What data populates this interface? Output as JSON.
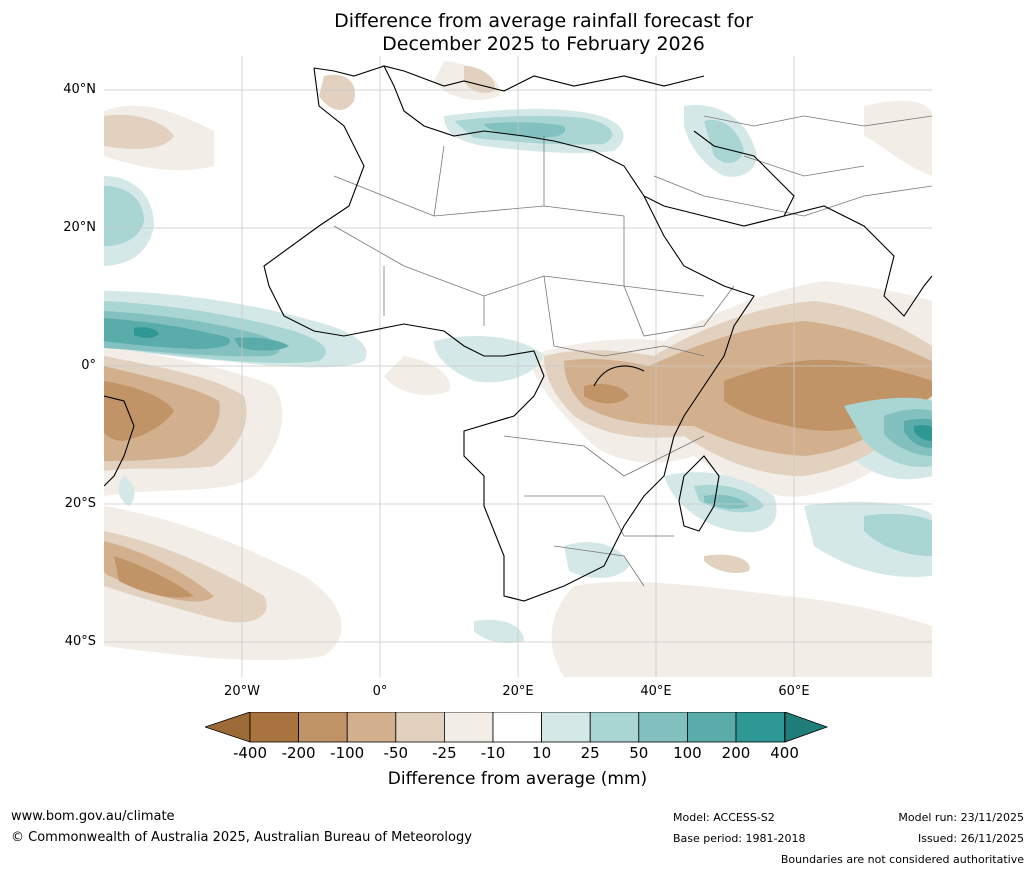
{
  "title": {
    "line1": "Difference from average rainfall forecast for",
    "line2": "December 2025 to February 2026"
  },
  "map": {
    "region": "Africa",
    "lat_labels": [
      "40°N",
      "20°N",
      "0°",
      "20°S",
      "40°S"
    ],
    "lon_labels": [
      "20°W",
      "0°",
      "20°E",
      "40°E",
      "60°E"
    ]
  },
  "legend": {
    "title": "Difference from average (mm)",
    "ticks": [
      "-400",
      "-200",
      "-100",
      "-50",
      "-25",
      "-10",
      "10",
      "25",
      "50",
      "100",
      "200",
      "400"
    ],
    "colors": {
      "below_min": "#9c6a37",
      "bins": [
        "#a8733e",
        "#c19467",
        "#d2b08d",
        "#e2d1be",
        "#f2ede6",
        "#ffffff",
        "#d4e9e7",
        "#a9d5d3",
        "#82c1bf",
        "#5aacaa",
        "#2e9894"
      ],
      "above_max": "#1f7d7a"
    }
  },
  "footer": {
    "website": "www.bom.gov.au/climate",
    "copyright": "© Commonwealth of Australia 2025, Australian Bureau of Meteorology",
    "model": "Model: ACCESS-S2",
    "base_period": "Base period: 1981-2018",
    "model_run": "Model run: 23/11/2025",
    "issued": "Issued: 26/11/2025",
    "boundaries": "Boundaries are not considered authoritative"
  }
}
